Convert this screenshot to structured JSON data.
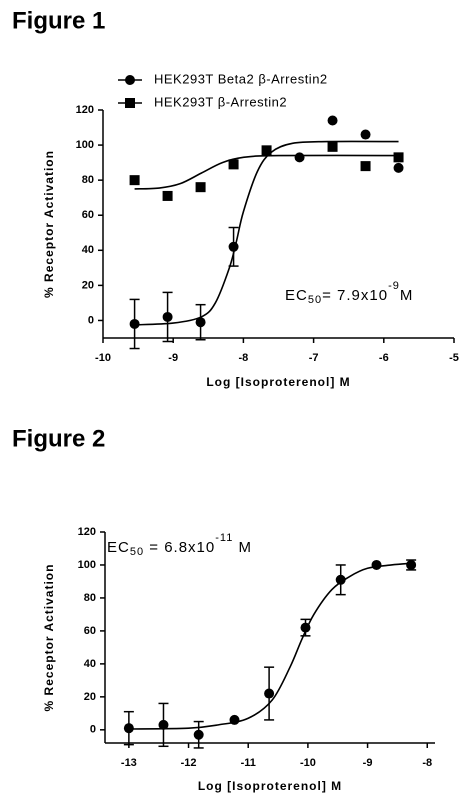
{
  "chart_data": [
    {
      "type": "scatter",
      "title": "Figure 1",
      "x_label": "Log [Isoproterenol] M",
      "y_label": "% Receptor Activation",
      "annotation": [
        "EC",
        "50",
        "= 7.9x10",
        "-9",
        "M"
      ],
      "xlim": [
        -10,
        -5
      ],
      "xticks": [
        -10,
        -9,
        -8,
        -7,
        -6,
        -5
      ],
      "ylim": [
        -10,
        120
      ],
      "yticks": [
        0,
        20,
        40,
        60,
        80,
        100,
        120
      ],
      "series": [
        {
          "name": "HEK293T Beta2 β-Arrestin2",
          "color": "#000000",
          "marker": "circle",
          "x": [
            -9.55,
            -9.08,
            -8.61,
            -8.14,
            -7.2,
            -6.73,
            -6.26,
            -5.79
          ],
          "values": [
            -2,
            2,
            -1,
            42,
            93,
            114,
            106,
            87
          ],
          "errors": [
            14,
            14,
            10,
            11,
            null,
            null,
            null,
            null
          ],
          "fit": {
            "x": [
              -9.55,
              -9.0,
              -8.6,
              -8.4,
              -8.2,
              -8.1,
              -8.0,
              -7.8,
              -7.6,
              -7.3,
              -6.8,
              -5.79
            ],
            "y": [
              -2.5,
              -1.5,
              2,
              10,
              30,
              45,
              62,
              85,
              96,
              101,
              102,
              102
            ]
          }
        },
        {
          "name": "HEK293T β-Arrestin2",
          "color": "#000000",
          "marker": "square",
          "x": [
            -9.55,
            -9.08,
            -8.61,
            -8.14,
            -7.67,
            -6.73,
            -6.26,
            -5.79
          ],
          "values": [
            80,
            71,
            76,
            89,
            97,
            99,
            88,
            93
          ],
          "errors": [
            null,
            null,
            null,
            null,
            null,
            null,
            null,
            null
          ],
          "fit": {
            "x": [
              -9.55,
              -9.2,
              -8.9,
              -8.6,
              -8.3,
              -8.0,
              -7.5,
              -5.79
            ],
            "y": [
              75,
              75.5,
              78,
              84,
              90,
              93,
              94,
              94
            ]
          }
        }
      ]
    },
    {
      "type": "scatter",
      "title": "Figure 2",
      "x_label": "Log [Isoproterenol] M",
      "y_label": "% Receptor Activation",
      "annotation": [
        "EC",
        "50",
        " = 6.8x10",
        "-11",
        " M"
      ],
      "xlim": [
        -13.4,
        -7.87
      ],
      "xticks": [
        -13,
        -12,
        -11,
        -10,
        -9,
        -8
      ],
      "ylim": [
        -8,
        120
      ],
      "yticks": [
        0,
        20,
        40,
        60,
        80,
        100,
        120
      ],
      "series": [
        {
          "color": "#000000",
          "marker": "circle",
          "x": [
            -13,
            -12.42,
            -11.83,
            -11.23,
            -10.65,
            -10.04,
            -9.45,
            -8.85,
            -8.27
          ],
          "values": [
            1,
            3,
            -3,
            6,
            22,
            62,
            91,
            100,
            100
          ],
          "errors": [
            10,
            13,
            8,
            null,
            16,
            5,
            9,
            null,
            3
          ],
          "fit": {
            "x": [
              -13,
              -12,
              -11.5,
              -11,
              -10.6,
              -10.3,
              -10.1,
              -9.9,
              -9.6,
              -9.3,
              -9,
              -8.6,
              -8.27
            ],
            "y": [
              0.5,
              1,
              3,
              7,
              18,
              38,
              55,
              70,
              85,
              93,
              98,
              100,
              101
            ]
          }
        }
      ]
    }
  ]
}
